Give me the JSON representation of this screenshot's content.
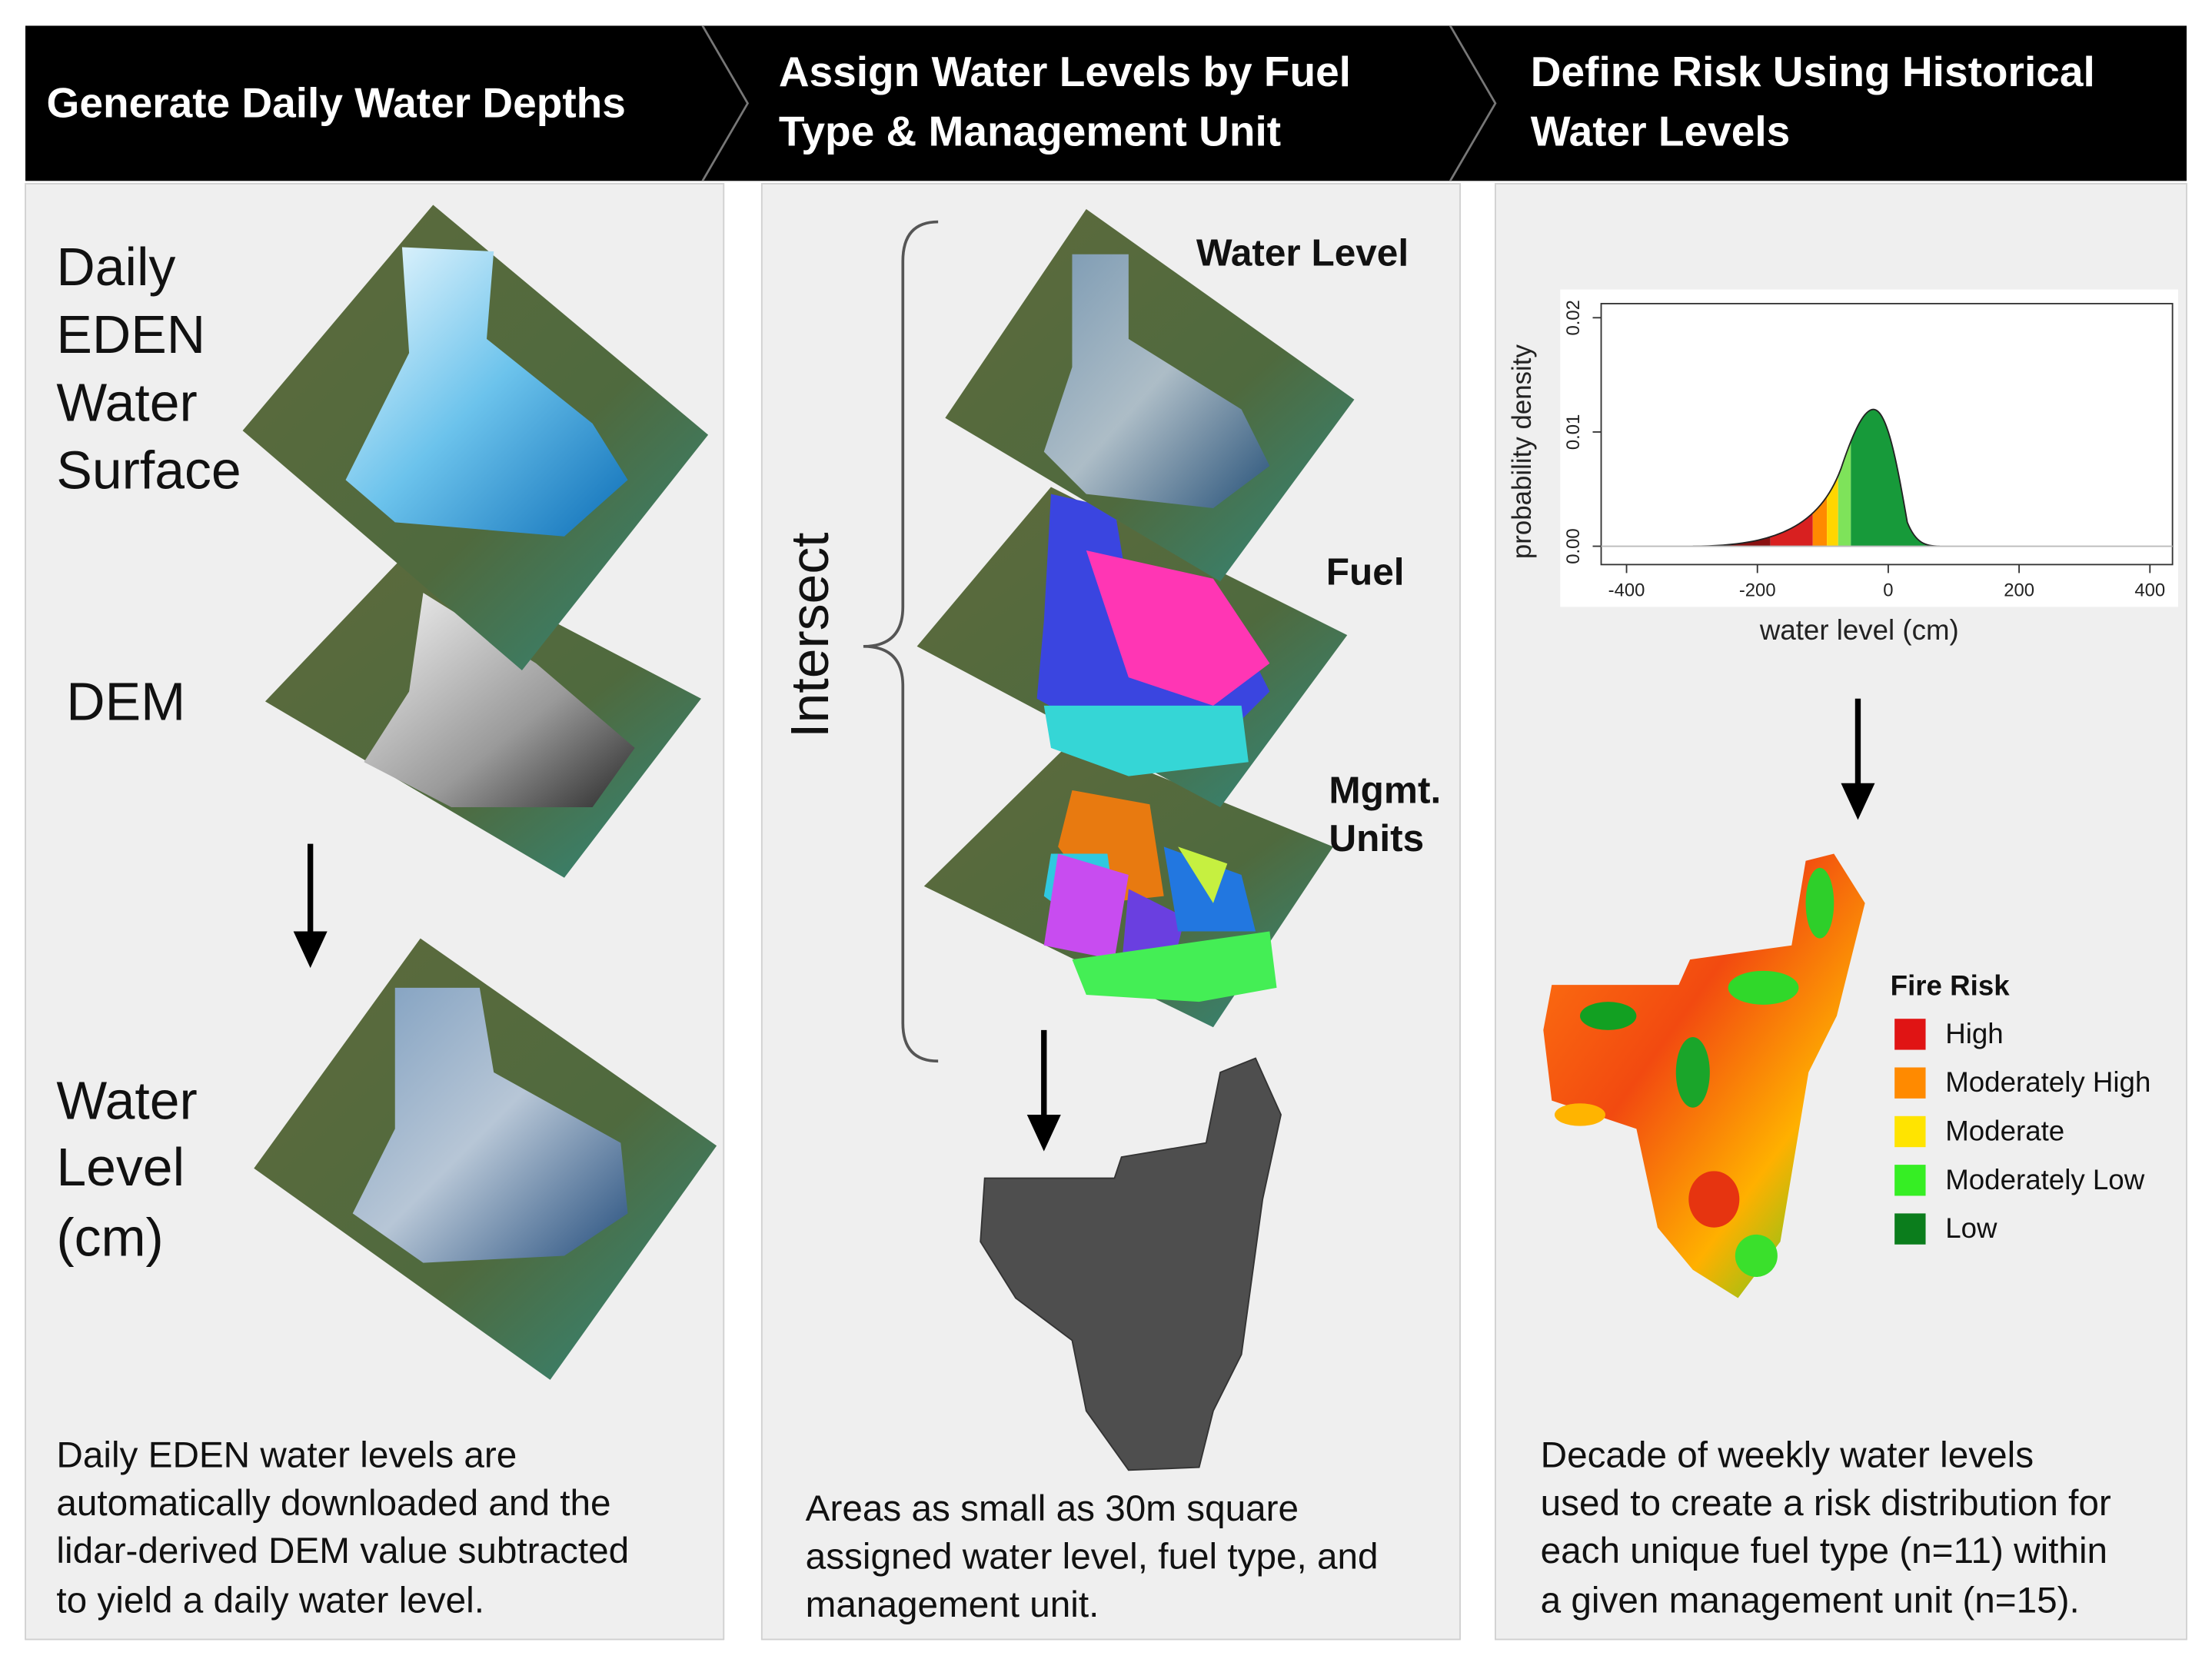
{
  "header": {
    "steps": [
      [
        "Generate Daily Water Depths"
      ],
      [
        "Assign Water Levels by Fuel",
        "Type & Management Unit"
      ],
      [
        "Define Risk Using Historical",
        "Water Levels"
      ]
    ]
  },
  "panel_1": {
    "labels": [
      [
        "Daily",
        "EDEN",
        "Water",
        "Surface"
      ],
      [
        "DEM"
      ],
      [
        "Water",
        "Level",
        "(cm)"
      ]
    ],
    "caption": [
      "Daily EDEN water levels are",
      "automatically downloaded and the",
      "lidar-derived DEM value subtracted",
      "to yield a daily water level."
    ]
  },
  "panel_2": {
    "bracket_label": "Intersect",
    "layers": [
      [
        "Water Level"
      ],
      [
        "Fuel"
      ],
      [
        "Mgmt.",
        "Units"
      ]
    ],
    "caption": [
      "Areas as small as 30m square",
      "assigned water level, fuel type, and",
      "management unit."
    ]
  },
  "panel_3": {
    "density_plot": {
      "y_label": "probability density",
      "x_label": "water level (cm)",
      "x_ticks": [
        -400,
        -200,
        0,
        200,
        400
      ],
      "y_ticks": [
        "0.00",
        "0.01",
        "0.02"
      ]
    },
    "legend": {
      "title": "Fire Risk",
      "items": [
        {
          "label": "High",
          "color": "#e01414"
        },
        {
          "label": "Moderately High",
          "color": "#ff8a00"
        },
        {
          "label": "Moderate",
          "color": "#ffe400"
        },
        {
          "label": "Moderately Low",
          "color": "#36ee24"
        },
        {
          "label": "Low",
          "color": "#0b7d1c"
        }
      ]
    },
    "caption": [
      "Decade of weekly water levels",
      "used to create a risk distribution for",
      "each unique fuel type (n=11)  within",
      "a given management unit (n=15)."
    ]
  }
}
